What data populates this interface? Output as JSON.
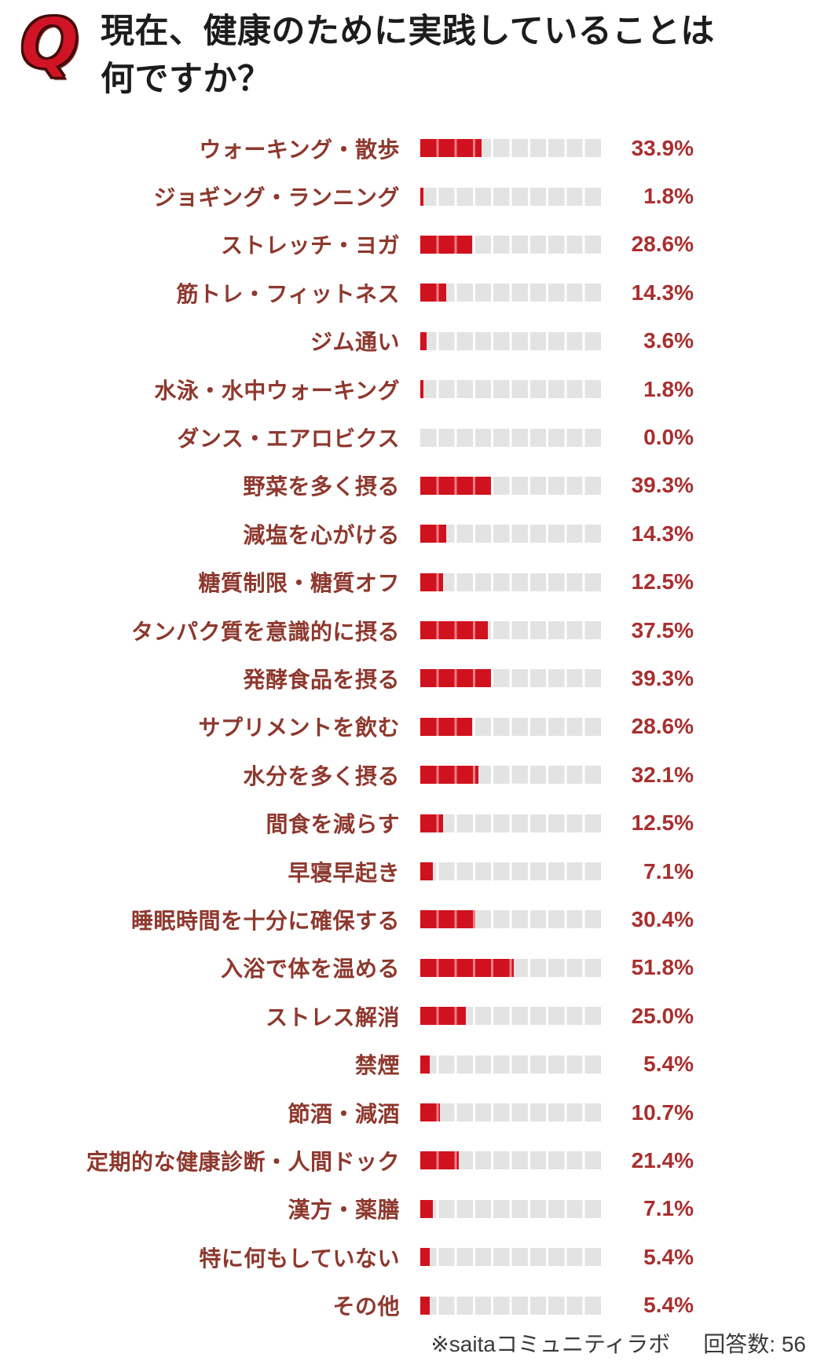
{
  "header": {
    "q_icon": "Q",
    "title": "現在、健康のために実践していることは何ですか？"
  },
  "footer": {
    "source": "※saitaコミュニティラボ",
    "responses": "回答数: 56"
  },
  "colors": {
    "bar_red": "#d0121f",
    "bar_red_divider": "#ee7f86",
    "track_gray": "#e4e3e3",
    "label_text": "#8e382e",
    "value_text": "#a92f2f",
    "title_text": "#1c1c1c"
  },
  "chart_data": {
    "type": "bar",
    "orientation": "horizontal",
    "unit": "%",
    "segments_per_bar": 10,
    "xlim": [
      0,
      100
    ],
    "title": "現在、健康のために実践していることは何ですか？",
    "categories": [
      "ウォーキング・散歩",
      "ジョギング・ランニング",
      "ストレッチ・ヨガ",
      "筋トレ・フィットネス",
      "ジム通い",
      "水泳・水中ウォーキング",
      "ダンス・エアロビクス",
      "野菜を多く摂る",
      "減塩を心がける",
      "糖質制限・糖質オフ",
      "タンパク質を意識的に摂る",
      "発酵食品を摂る",
      "サプリメントを飲む",
      "水分を多く摂る",
      "間食を減らす",
      "早寝早起き",
      "睡眠時間を十分に確保する",
      "入浴で体を温める",
      "ストレス解消",
      "禁煙",
      "節酒・減酒",
      "定期的な健康診断・人間ドック",
      "漢方・薬膳",
      "特に何もしていない",
      "その他"
    ],
    "values": [
      33.9,
      1.8,
      28.6,
      14.3,
      3.6,
      1.8,
      0.0,
      39.3,
      14.3,
      12.5,
      37.5,
      39.3,
      28.6,
      32.1,
      12.5,
      7.1,
      30.4,
      51.8,
      25.0,
      5.4,
      10.7,
      21.4,
      7.1,
      5.4,
      5.4
    ]
  }
}
